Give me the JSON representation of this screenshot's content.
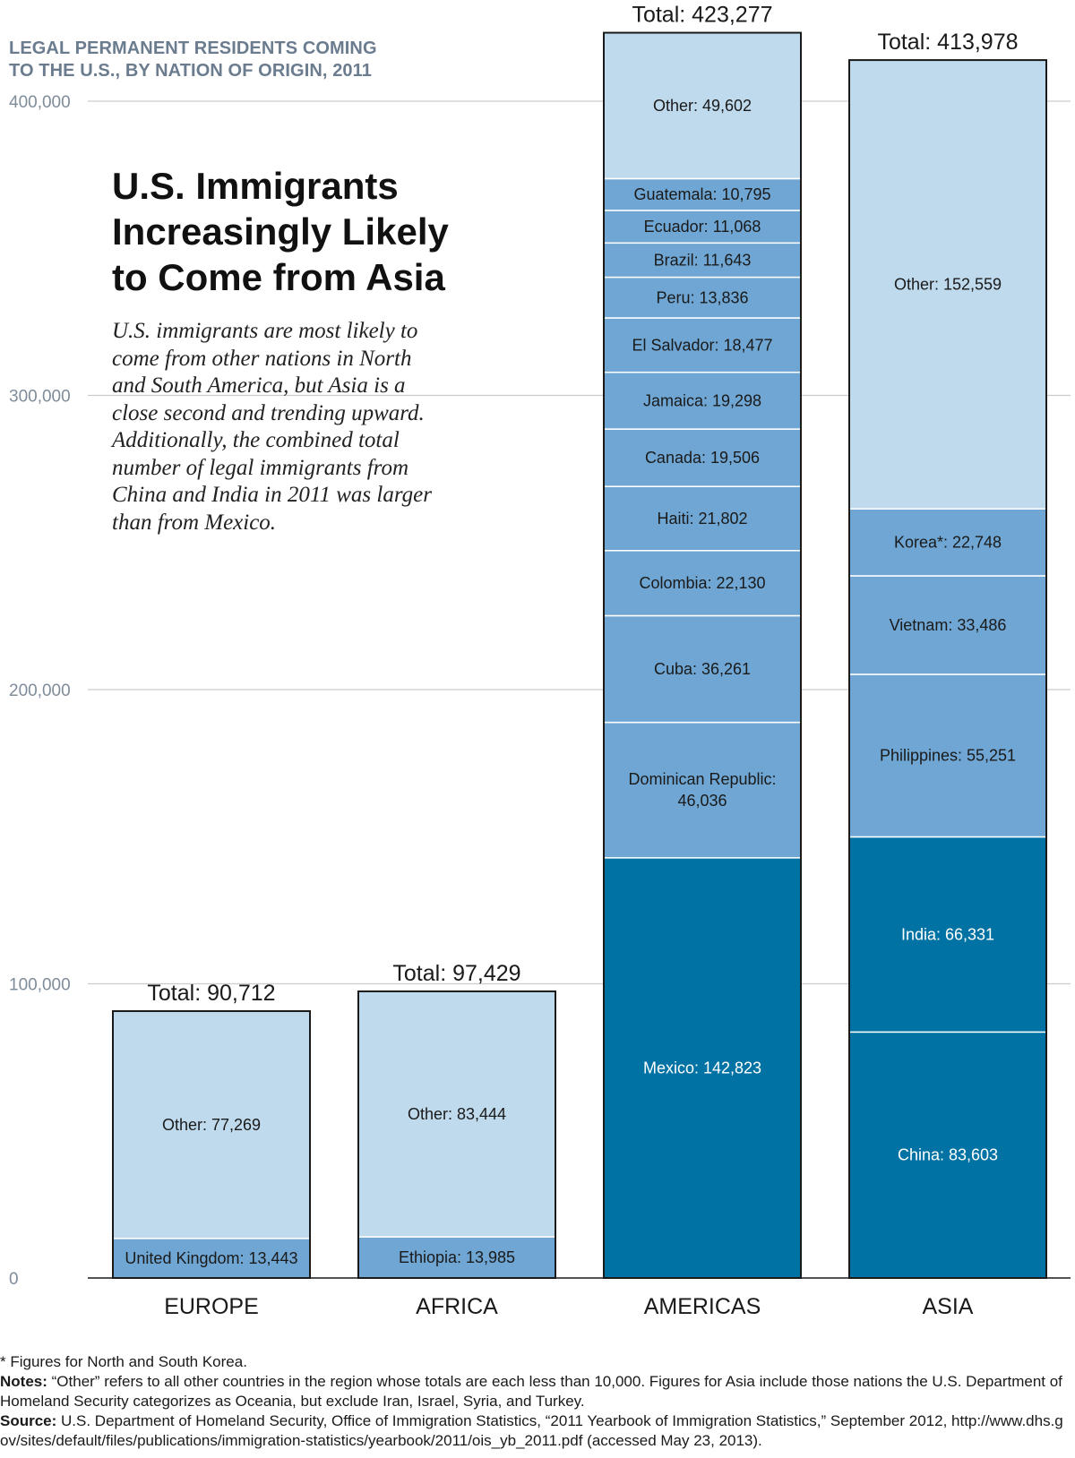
{
  "subtitle_line1": "LEGAL PERMANENT RESIDENTS COMING",
  "subtitle_line2": "TO THE U.S., BY NATION OF ORIGIN, 2011",
  "headline": "U.S. Immigrants Increasingly Likely to Come from Asia",
  "intro": "U.S. immigrants are most likely to come from other nations in North and South America, but Asia is a close second and trending upward. Additionally, the combined total number of legal immigrants from China and India in 2011 was larger than from Mexico.",
  "colors": {
    "light": "#bfd9ed",
    "medium": "#6fa6d3",
    "dark": "#0072a3",
    "grid": "#cccccc",
    "axis_text": "#7f8c99",
    "white_text": "#ffffff",
    "dark_text": "#1a1a1a"
  },
  "chart_data": {
    "type": "stacked-bar",
    "title": "LEGAL PERMANENT RESIDENTS COMING TO THE U.S., BY NATION OF ORIGIN, 2011",
    "ylim": [
      0,
      400000
    ],
    "yticks": [
      0,
      100000,
      200000,
      300000,
      400000
    ],
    "ytick_labels": [
      "0",
      "100,000",
      "200,000",
      "300,000",
      "400,000"
    ],
    "grid": true,
    "categories": [
      "EUROPE",
      "AFRICA",
      "AMERICAS",
      "ASIA"
    ],
    "bars": [
      {
        "region": "EUROPE",
        "total": 90712,
        "total_label": "Total: 90,712",
        "segments": [
          {
            "label": "United Kingdom: 13,443",
            "value": 13443,
            "shade": "medium"
          },
          {
            "label": "Other: 77,269",
            "value": 77269,
            "shade": "light"
          }
        ]
      },
      {
        "region": "AFRICA",
        "total": 97429,
        "total_label": "Total: 97,429",
        "segments": [
          {
            "label": "Ethiopia: 13,985",
            "value": 13985,
            "shade": "medium"
          },
          {
            "label": "Other: 83,444",
            "value": 83444,
            "shade": "light"
          }
        ]
      },
      {
        "region": "AMERICAS",
        "total": 423277,
        "total_label": "Total: 423,277",
        "segments": [
          {
            "label": "Mexico: 142,823",
            "value": 142823,
            "shade": "dark"
          },
          {
            "label": "Dominican Republic: 46,036",
            "lines": [
              "Dominican Republic:",
              "46,036"
            ],
            "value": 46036,
            "shade": "medium"
          },
          {
            "label": "Cuba: 36,261",
            "value": 36261,
            "shade": "medium"
          },
          {
            "label": "Colombia: 22,130",
            "value": 22130,
            "shade": "medium"
          },
          {
            "label": "Haiti: 21,802",
            "value": 21802,
            "shade": "medium"
          },
          {
            "label": "Canada: 19,506",
            "value": 19506,
            "shade": "medium"
          },
          {
            "label": "Jamaica: 19,298",
            "value": 19298,
            "shade": "medium"
          },
          {
            "label": "El Salvador: 18,477",
            "value": 18477,
            "shade": "medium"
          },
          {
            "label": "Peru: 13,836",
            "value": 13836,
            "shade": "medium"
          },
          {
            "label": "Brazil: 11,643",
            "value": 11643,
            "shade": "medium"
          },
          {
            "label": "Ecuador: 11,068",
            "value": 11068,
            "shade": "medium"
          },
          {
            "label": "Guatemala: 10,795",
            "value": 10795,
            "shade": "medium"
          },
          {
            "label": "Other: 49,602",
            "value": 49602,
            "shade": "light"
          }
        ]
      },
      {
        "region": "ASIA",
        "total": 413978,
        "total_label": "Total: 413,978",
        "segments": [
          {
            "label": "China: 83,603",
            "value": 83603,
            "shade": "dark"
          },
          {
            "label": "India: 66,331",
            "value": 66331,
            "shade": "dark"
          },
          {
            "label": "Philippines: 55,251",
            "value": 55251,
            "shade": "medium"
          },
          {
            "label": "Vietnam: 33,486",
            "value": 33486,
            "shade": "medium"
          },
          {
            "label": "Korea*: 22,748",
            "value": 22748,
            "shade": "medium"
          },
          {
            "label": "Other: 152,559",
            "value": 152559,
            "shade": "light"
          }
        ]
      }
    ]
  },
  "footnotes": {
    "korea_note": "* Figures for North and South Korea.",
    "notes_label": "Notes:",
    "notes_text": " “Other” refers to all other countries in the region whose totals are each less than 10,000. Figures for Asia include those nations the U.S. Department of Homeland Security categorizes as Oceania, but exclude Iran, Israel, Syria, and Turkey.",
    "source_label": "Source:",
    "source_text": " U.S. Department of Homeland Security, Office of Immigration Statistics, “2011 Yearbook of Immigration Statistics,” September 2012, ",
    "source_url": "http://www.dhs.gov/sites/default/files/publications/immigration-statistics/yearbook/2011/ois_yb_2011.pdf",
    "source_accessed": " (accessed May 23, 2013)."
  }
}
